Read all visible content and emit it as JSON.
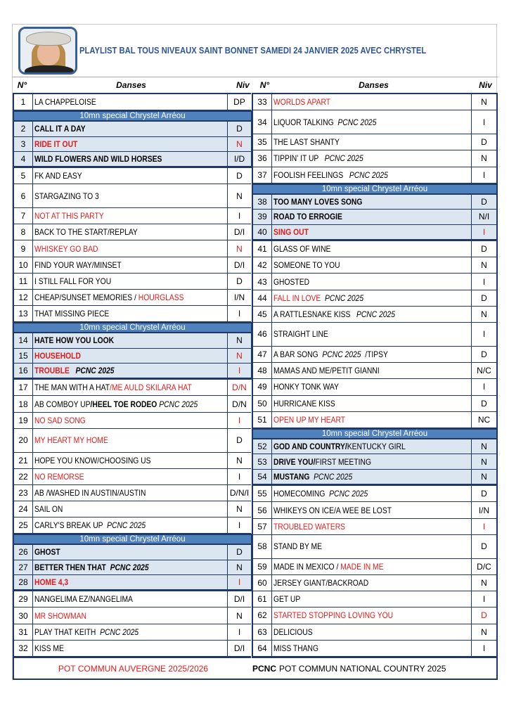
{
  "title": "PLAYLIST BAL TOUS NIVEAUX SAINT BONNET SAMEDI 24 JANVIER 2025 AVEC CHRYSTEL",
  "headers": {
    "num": "N°",
    "dance": "Danses",
    "level": "Niv"
  },
  "colors": {
    "accent": "#4f81bd",
    "border": "#1f3864",
    "red": "#e01b1b",
    "highlight": "#dce6f1",
    "title": "#2e5597"
  },
  "left": [
    {
      "n": "1",
      "dance": [
        {
          "t": "LA CHAPPELOISE"
        }
      ],
      "niv": "DP"
    },
    {
      "special": true,
      "banner": "10mn special Chrystel Arréou",
      "rows": [
        {
          "n": "2",
          "dance": [
            {
              "t": "CALL IT A DAY",
              "b": true
            }
          ],
          "niv": "D"
        },
        {
          "n": "3",
          "dance": [
            {
              "t": "RIDE IT OUT",
              "b": true,
              "r": true
            }
          ],
          "niv": "N",
          "niv_red": true
        },
        {
          "n": "4",
          "dance": [
            {
              "t": "WILD FLOWERS AND WILD HORSES",
              "b": true
            }
          ],
          "niv": "I/D"
        }
      ]
    },
    {
      "n": "5",
      "dance": [
        {
          "t": "FK AND EASY"
        }
      ],
      "niv": "D"
    },
    {
      "n": "6",
      "dance": [
        {
          "t": "STARGAZING TO 3"
        }
      ],
      "niv": "N",
      "span": 2
    },
    {
      "n": "7",
      "dance": [
        {
          "t": "NOT AT THIS PARTY",
          "r": true
        }
      ],
      "niv": "I"
    },
    {
      "n": "8",
      "dance": [
        {
          "t": "BACK TO THE START/REPLAY"
        }
      ],
      "niv": "D/I"
    },
    {
      "n": "9",
      "dance": [
        {
          "t": "WHISKEY GO BAD",
          "r": true
        }
      ],
      "niv": "N",
      "niv_red": true
    },
    {
      "n": "10",
      "dance": [
        {
          "t": "FIND YOUR WAY/MINSET"
        }
      ],
      "niv": "D/I"
    },
    {
      "n": "11",
      "dance": [
        {
          "t": "I STILL FALL FOR YOU"
        }
      ],
      "niv": "D"
    },
    {
      "n": "12",
      "dance": [
        {
          "t": "CHEAP/SUNSET MEMORIES / "
        },
        {
          "t": "HOURGLASS",
          "r": true
        }
      ],
      "niv": "I/N"
    },
    {
      "n": "13",
      "dance": [
        {
          "t": "THAT MISSING PIECE"
        }
      ],
      "niv": "I"
    },
    {
      "special": true,
      "banner": "10mn special Chrystel Arréou",
      "rows": [
        {
          "n": "14",
          "dance": [
            {
              "t": "HATE HOW YOU LOOK",
              "b": true
            }
          ],
          "niv": "N"
        },
        {
          "n": "15",
          "dance": [
            {
              "t": "HOUSEHOLD",
              "b": true,
              "r": true
            }
          ],
          "niv": "N",
          "niv_red": true
        },
        {
          "n": "16",
          "dance": [
            {
              "t": "TROUBLE",
              "b": true,
              "r": true
            },
            {
              "t": "   PCNC 2025",
              "b": true,
              "i": true
            }
          ],
          "niv": "I",
          "niv_red": true
        }
      ]
    },
    {
      "n": "17",
      "dance": [
        {
          "t": "THE MAN WITH A HAT"
        },
        {
          "t": "/ME AULD SKILARA HAT",
          "r": true
        }
      ],
      "niv": "D/N",
      "niv_red": true
    },
    {
      "n": "18",
      "dance": [
        {
          "t": "AB COMBOY UP"
        },
        {
          "t": "/HEEL TOE RODEO",
          "b": true
        },
        {
          "t": " PCNC 2025",
          "i": true
        }
      ],
      "niv": "D/N"
    },
    {
      "n": "19",
      "dance": [
        {
          "t": "NO SAD SONG",
          "r": true
        }
      ],
      "niv": "I",
      "niv_red": true
    },
    {
      "n": "20",
      "dance": [
        {
          "t": "MY HEART MY HOME",
          "r": true
        }
      ],
      "niv": "D",
      "span": 2
    },
    {
      "n": "21",
      "dance": [
        {
          "t": "HOPE YOU KNOW/CHOOSING US"
        }
      ],
      "niv": "N"
    },
    {
      "n": "22",
      "dance": [
        {
          "t": "NO REMORSE",
          "r": true
        }
      ],
      "niv": "I"
    },
    {
      "n": "23",
      "dance": [
        {
          "t": "AB /WASHED IN AUSTIN/AUSTIN"
        }
      ],
      "niv": "D/N/I"
    },
    {
      "n": "24",
      "dance": [
        {
          "t": "SAIL ON"
        }
      ],
      "niv": "N"
    },
    {
      "n": "25",
      "dance": [
        {
          "t": "CARLY'S BREAK UP  "
        },
        {
          "t": "PCNC 2025",
          "i": true
        }
      ],
      "niv": "I"
    },
    {
      "special": true,
      "banner": "10mn special Chrystel Arréou",
      "rows": [
        {
          "n": "26",
          "dance": [
            {
              "t": "GHOST",
              "b": true
            }
          ],
          "niv": "D"
        },
        {
          "n": "27",
          "dance": [
            {
              "t": "BETTER THEN THAT  ",
              "b": true
            },
            {
              "t": "PCNC 2025",
              "b": true,
              "i": true
            }
          ],
          "niv": "N"
        },
        {
          "n": "28",
          "dance": [
            {
              "t": "HOME 4,3",
              "b": true,
              "r": true
            }
          ],
          "niv": "I",
          "niv_red": true
        }
      ]
    },
    {
      "n": "29",
      "dance": [
        {
          "t": "NANGELIMA EZ/NANGELIMA"
        }
      ],
      "niv": "D/I"
    },
    {
      "n": "30",
      "dance": [
        {
          "t": "MR SHOWMAN",
          "r": true
        }
      ],
      "niv": "N"
    },
    {
      "n": "31",
      "dance": [
        {
          "t": "PLAY THAT KEITH  "
        },
        {
          "t": "PCNC 2025",
          "i": true
        }
      ],
      "niv": "I"
    },
    {
      "n": "32",
      "dance": [
        {
          "t": "KISS ME"
        }
      ],
      "niv": "D/I"
    }
  ],
  "right": [
    {
      "n": "33",
      "dance": [
        {
          "t": "WORLDS APART",
          "r": true
        }
      ],
      "niv": "N"
    },
    {
      "n": "34",
      "dance": [
        {
          "t": "LIQUOR TALKING  "
        },
        {
          "t": "PCNC 2025",
          "i": true
        }
      ],
      "niv": "I",
      "span": 2
    },
    {
      "n": "35",
      "dance": [
        {
          "t": "THE LAST SHANTY"
        }
      ],
      "niv": "D"
    },
    {
      "n": "36",
      "dance": [
        {
          "t": "TIPPIN' IT UP   "
        },
        {
          "t": "PCNC 2025",
          "i": true
        }
      ],
      "niv": "N"
    },
    {
      "n": "37",
      "dance": [
        {
          "t": "FOOLISH FEELINGS   "
        },
        {
          "t": "PCNC 2025",
          "i": true
        }
      ],
      "niv": "I"
    },
    {
      "special": true,
      "banner": "10mn special Chrystel Arréou",
      "rows": [
        {
          "n": "38",
          "dance": [
            {
              "t": "TOO MANY LOVES SONG",
              "b": true
            }
          ],
          "niv": "D"
        },
        {
          "n": "39",
          "dance": [
            {
              "t": "ROAD TO ERROGIE",
              "b": true
            }
          ],
          "niv": "N/I"
        },
        {
          "n": "40",
          "dance": [
            {
              "t": "SING OUT",
              "b": true,
              "r": true
            }
          ],
          "niv": "I",
          "niv_red": true
        }
      ]
    },
    {
      "n": "41",
      "dance": [
        {
          "t": "GLASS OF WINE"
        }
      ],
      "niv": "D"
    },
    {
      "n": "42",
      "dance": [
        {
          "t": "SOMEONE TO YOU"
        }
      ],
      "niv": "N"
    },
    {
      "n": "43",
      "dance": [
        {
          "t": "GHOSTED"
        }
      ],
      "niv": "I"
    },
    {
      "n": "44",
      "dance": [
        {
          "t": "FALL IN LOVE  ",
          "r": true
        },
        {
          "t": "PCNC 2025",
          "i": true
        }
      ],
      "niv": "D"
    },
    {
      "n": "45",
      "dance": [
        {
          "t": "A RATTLESNAKE KISS   "
        },
        {
          "t": "PCNC 2025",
          "i": true
        }
      ],
      "niv": "N"
    },
    {
      "n": "46",
      "dance": [
        {
          "t": "STRAIGHT LINE"
        }
      ],
      "niv": "I",
      "span": 2
    },
    {
      "n": "47",
      "dance": [
        {
          "t": "A BAR SONG  "
        },
        {
          "t": "PCNC 2025",
          "i": true
        },
        {
          "t": "  /TIPSY"
        }
      ],
      "niv": "D"
    },
    {
      "n": "48",
      "dance": [
        {
          "t": "MAMAS AND ME/PETIT GIANNI"
        }
      ],
      "niv": "N/C"
    },
    {
      "n": "49",
      "dance": [
        {
          "t": "HONKY TONK WAY"
        }
      ],
      "niv": "I"
    },
    {
      "n": "50",
      "dance": [
        {
          "t": "HURRICANE KISS"
        }
      ],
      "niv": "D"
    },
    {
      "n": "51",
      "dance": [
        {
          "t": "OPEN UP MY HEART",
          "r": true
        }
      ],
      "niv": "NC"
    },
    {
      "special": true,
      "banner": "10mn special Chrystel Arréou",
      "rows": [
        {
          "n": "52",
          "dance": [
            {
              "t": "GOD AND COUNTRY/",
              "b": true
            },
            {
              "t": "KENTUCKY GIRL"
            }
          ],
          "niv": "N"
        },
        {
          "n": "53",
          "dance": [
            {
              "t": "DRIVE YOU/",
              "b": true
            },
            {
              "t": "FIRST MEETING"
            }
          ],
          "niv": "N"
        },
        {
          "n": "54",
          "dance": [
            {
              "t": "MUSTANG  ",
              "b": true
            },
            {
              "t": "PCNC 2025",
              "i": true
            }
          ],
          "niv": "N"
        }
      ]
    },
    {
      "n": "55",
      "dance": [
        {
          "t": "HOMECOMING  "
        },
        {
          "t": "PCNC 2025",
          "i": true
        }
      ],
      "niv": "D"
    },
    {
      "n": "56",
      "dance": [
        {
          "t": "WHIKEYS ON ICE/A WEE BE LOST"
        }
      ],
      "niv": "I/N"
    },
    {
      "n": "57",
      "dance": [
        {
          "t": "TROUBLED WATERS",
          "r": true
        }
      ],
      "niv": "I",
      "niv_red": true
    },
    {
      "n": "58",
      "dance": [
        {
          "t": "STAND BY ME"
        }
      ],
      "niv": "D",
      "span": 2
    },
    {
      "n": "59",
      "dance": [
        {
          "t": "MADE IN MEXICO / "
        },
        {
          "t": "MADE IN ME",
          "r": true
        }
      ],
      "niv": "D/C"
    },
    {
      "n": "60",
      "dance": [
        {
          "t": "JERSEY GIANT/BACKROAD"
        }
      ],
      "niv": "N"
    },
    {
      "n": "61",
      "dance": [
        {
          "t": "GET UP"
        }
      ],
      "niv": "I"
    },
    {
      "n": "62",
      "dance": [
        {
          "t": "STARTED STOPPING LOVING YOU",
          "r": true
        }
      ],
      "niv": "D",
      "niv_red": true
    },
    {
      "n": "63",
      "dance": [
        {
          "t": "DELICIOUS"
        }
      ],
      "niv": "N"
    },
    {
      "n": "64",
      "dance": [
        {
          "t": "MISS THANG"
        }
      ],
      "niv": "I"
    }
  ],
  "footer": {
    "left": "POT COMMUN AUVERGNE 2025/2026",
    "abbr": "PCNC",
    "right": "POT COMMUN NATIONAL COUNTRY 2025"
  }
}
